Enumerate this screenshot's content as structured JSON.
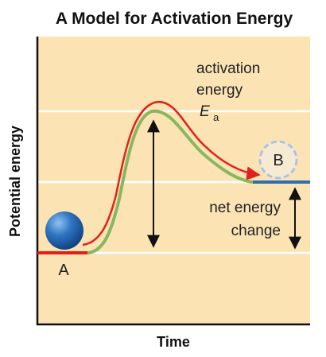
{
  "title": "A Model for Activation Energy",
  "axes": {
    "xlabel": "Time",
    "ylabel": "Potential energy"
  },
  "labels": {
    "activation_line1": "activation",
    "activation_line2": "energy",
    "ea_symbol": "E",
    "ea_subscript": "a",
    "net_line1": "net energy",
    "net_line2": "change",
    "point_a": "A",
    "point_b": "B"
  },
  "colors": {
    "background": "#fbe3b4",
    "gridline": "#ffffff",
    "axis": "#111111",
    "uncatalyzed_path": "#e0201b",
    "catalyzed_path": "#86b95f",
    "reactant_level": "#e0201b",
    "product_level": "#2a6fb5",
    "ball": "#2f74c0",
    "product_ghost": "#a9c4e6"
  }
}
